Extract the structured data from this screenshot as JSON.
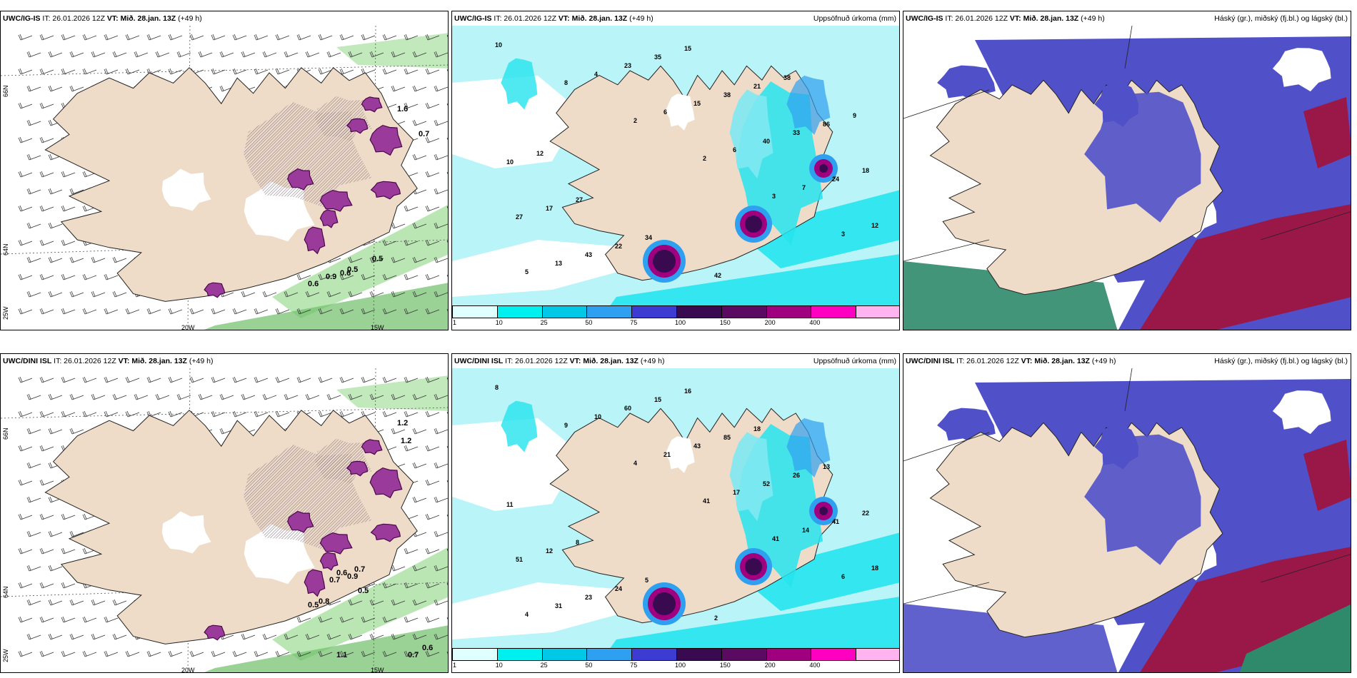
{
  "header": {
    "issue": "IT: 26.01.2026 12Z",
    "vt_prefix": "VT:",
    "vt": "Mið. 28.jan. 13Z",
    "lead": "(+49 h)"
  },
  "rows": [
    {
      "model": "UWC/IG-IS",
      "precip_title": "Uppsöfnuð úrkoma (mm)",
      "cloud_title": "Háský (gr.), miðský (fj.bl.) og lágský (bl.)",
      "wind_labels": [
        "1.6",
        "0.7",
        "0.5",
        "0.6",
        "0.5",
        "0.9",
        "0.6"
      ],
      "precip_labels": [
        "10",
        "8",
        "2",
        "2",
        "3",
        "3",
        "5",
        "4",
        "6",
        "6",
        "7",
        "12",
        "13",
        "23",
        "15",
        "40",
        "24",
        "27",
        "43",
        "35",
        "38",
        "33",
        "18",
        "17",
        "22",
        "15",
        "21",
        "86",
        "10",
        "27",
        "34",
        "42",
        "38",
        "9",
        "12"
      ]
    },
    {
      "model": "UWC/DINI ISL",
      "precip_title": "Uppsöfnuð úrkoma (mm)",
      "cloud_title": "Háský (gr.), miðský (fj.bl.) og lágský (bl.)",
      "wind_labels": [
        "1.2",
        "1.2",
        "0.7",
        "0.6",
        "0.9",
        "0.5",
        "0.8",
        "0.7",
        "0.5",
        "1.1",
        "0.7",
        "0.6"
      ],
      "precip_labels": [
        "8",
        "9",
        "4",
        "41",
        "41",
        "6",
        "4",
        "10",
        "21",
        "17",
        "14",
        "18",
        "31",
        "60",
        "43",
        "52",
        "41",
        "51",
        "23",
        "15",
        "85",
        "26",
        "22",
        "12",
        "24",
        "16",
        "18",
        "13",
        "11",
        "8",
        "5",
        "2"
      ]
    }
  ],
  "axes": {
    "lat_top": "66N",
    "lat_bottom": "64N",
    "lat_corner": "25W",
    "lon_left": "20W",
    "lon_right": "15W"
  },
  "colorbar": {
    "ticks": [
      "1",
      "10",
      "25",
      "50",
      "75",
      "100",
      "150",
      "200",
      "400"
    ],
    "colors": [
      "#e0ffff",
      "#00f0f0",
      "#00c8e6",
      "#2fa0f0",
      "#3c3cd2",
      "#3a0a50",
      "#5a0a60",
      "#a00080",
      "#ff00c0",
      "#ffb4f0"
    ]
  },
  "colors": {
    "land": "#efdcc8",
    "sea_precip": "#b8f4f8",
    "cyan": "#25e4ee",
    "cloud_blue": "#5050c8",
    "cloud_red": "#9a1848",
    "low_green": "#2e8a6a",
    "snow_hatch": "#8a7a86",
    "precip_purple": "#9a3a9a",
    "wind_green": "#a8e0a0"
  }
}
